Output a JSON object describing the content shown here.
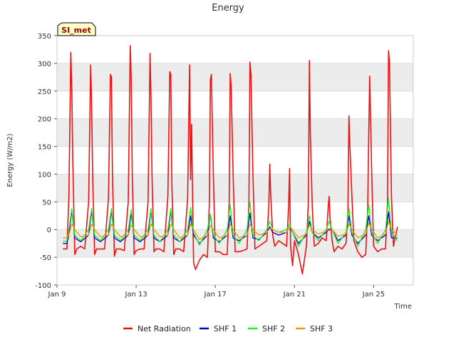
{
  "chart_data": {
    "type": "line",
    "title": "Energy",
    "xlabel": "Time",
    "ylabel": "Energy (W/m2)",
    "badge": "SI_met",
    "ylim": [
      -100,
      350
    ],
    "xlim": [
      0,
      18.0
    ],
    "x_unit": "days since Jan 9 00:00",
    "yticks": [
      -100,
      -50,
      0,
      50,
      100,
      150,
      200,
      250,
      300,
      350
    ],
    "xticks": [
      {
        "value": 0,
        "label": "Jan 9"
      },
      {
        "value": 4,
        "label": "Jan 13"
      },
      {
        "value": 8,
        "label": "Jan 17"
      },
      {
        "value": 12,
        "label": "Jan 21"
      },
      {
        "value": 16,
        "label": "Jan 25"
      }
    ],
    "colors": {
      "net_radiation": "#ee1111",
      "shf1": "#0000cc",
      "shf2": "#22ee22",
      "shf3": "#ee9900",
      "band": "#ececec",
      "grid": "#dddddd",
      "badge_bg": "#ffffcc",
      "badge_text": "#990000"
    },
    "series": [
      {
        "name": "Net Radiation",
        "color": "#ee1111",
        "x": [
          0.3,
          0.5,
          0.6,
          0.7,
          0.75,
          0.8,
          0.9,
          1.0,
          1.2,
          1.4,
          1.6,
          1.7,
          1.75,
          1.8,
          1.9,
          2.0,
          2.2,
          2.4,
          2.6,
          2.7,
          2.75,
          2.8,
          2.9,
          3.0,
          3.2,
          3.4,
          3.6,
          3.7,
          3.75,
          3.8,
          3.9,
          4.0,
          4.2,
          4.4,
          4.6,
          4.7,
          4.75,
          4.8,
          4.9,
          5.0,
          5.2,
          5.4,
          5.6,
          5.7,
          5.75,
          5.8,
          5.9,
          6.0,
          6.2,
          6.4,
          6.6,
          6.7,
          6.75,
          6.8,
          6.85,
          6.9,
          7.0,
          7.2,
          7.4,
          7.6,
          7.7,
          7.75,
          7.8,
          7.9,
          8.0,
          8.2,
          8.4,
          8.6,
          8.7,
          8.75,
          8.8,
          8.9,
          9.0,
          9.2,
          9.4,
          9.6,
          9.7,
          9.75,
          9.8,
          9.9,
          10.0,
          10.2,
          10.4,
          10.6,
          10.7,
          10.75,
          10.8,
          10.9,
          11.0,
          11.2,
          11.4,
          11.6,
          11.7,
          11.75,
          11.8,
          11.9,
          12.0,
          12.2,
          12.4,
          12.6,
          12.7,
          12.75,
          12.8,
          12.9,
          13.0,
          13.2,
          13.4,
          13.6,
          13.7,
          13.75,
          13.8,
          13.9,
          14.0,
          14.2,
          14.4,
          14.6,
          14.7,
          14.75,
          14.8,
          14.9,
          15.0,
          15.2,
          15.4,
          15.6,
          15.7,
          15.75,
          15.8,
          15.9,
          16.0,
          16.2,
          16.4,
          16.6,
          16.7,
          16.75,
          16.8,
          16.9,
          17.0,
          17.2
        ],
        "values": [
          -35,
          -35,
          60,
          320,
          250,
          120,
          -45,
          -35,
          -30,
          -35,
          50,
          297,
          225,
          100,
          -45,
          -35,
          -35,
          -35,
          55,
          280,
          275,
          100,
          -48,
          -35,
          -35,
          -38,
          50,
          332,
          270,
          100,
          -45,
          -38,
          -35,
          -35,
          50,
          318,
          240,
          100,
          -40,
          -35,
          -35,
          -40,
          60,
          285,
          280,
          90,
          -45,
          -35,
          -35,
          -40,
          55,
          297,
          90,
          190,
          60,
          -60,
          -72,
          -55,
          -45,
          -50,
          50,
          270,
          280,
          100,
          -40,
          -40,
          -45,
          -45,
          50,
          282,
          260,
          100,
          -40,
          -40,
          -38,
          -35,
          50,
          302,
          280,
          100,
          -35,
          -30,
          -25,
          -20,
          40,
          118,
          60,
          -10,
          -30,
          -20,
          -25,
          -30,
          40,
          110,
          -30,
          -65,
          -20,
          -45,
          -80,
          -30,
          50,
          305,
          170,
          40,
          -30,
          -25,
          -15,
          -20,
          40,
          60,
          20,
          -20,
          -40,
          -30,
          -35,
          -25,
          30,
          205,
          150,
          60,
          -20,
          -40,
          -50,
          -45,
          40,
          170,
          277,
          100,
          -30,
          -40,
          -35,
          -35,
          50,
          323,
          300,
          60,
          -30,
          5
        ]
      },
      {
        "name": "SHF 1",
        "color": "#0000cc",
        "x": [
          0.3,
          0.5,
          0.6,
          0.75,
          0.9,
          1.2,
          1.6,
          1.75,
          1.9,
          2.2,
          2.6,
          2.75,
          2.9,
          3.2,
          3.6,
          3.75,
          3.9,
          4.2,
          4.6,
          4.75,
          4.9,
          5.2,
          5.6,
          5.75,
          5.9,
          6.2,
          6.6,
          6.75,
          6.9,
          7.2,
          7.6,
          7.75,
          7.9,
          8.2,
          8.6,
          8.75,
          8.9,
          9.2,
          9.6,
          9.75,
          9.9,
          10.2,
          10.6,
          10.75,
          10.9,
          11.2,
          11.6,
          11.75,
          11.9,
          12.2,
          12.6,
          12.75,
          12.9,
          13.2,
          13.6,
          13.75,
          13.9,
          14.2,
          14.6,
          14.75,
          14.9,
          15.2,
          15.6,
          15.75,
          15.9,
          16.2,
          16.6,
          16.75,
          16.9,
          17.2
        ],
        "values": [
          -25,
          -25,
          -10,
          35,
          -15,
          -22,
          -10,
          35,
          -15,
          -22,
          -10,
          35,
          -15,
          -22,
          -10,
          30,
          -15,
          -22,
          -10,
          35,
          -15,
          -22,
          -10,
          35,
          -15,
          -22,
          -10,
          25,
          -10,
          -25,
          -10,
          28,
          -15,
          -22,
          -10,
          25,
          -15,
          -20,
          -10,
          30,
          -15,
          -18,
          -5,
          5,
          -5,
          -10,
          -5,
          5,
          -5,
          -25,
          -10,
          15,
          -5,
          -15,
          -5,
          0,
          0,
          -20,
          -10,
          25,
          -10,
          -25,
          -10,
          25,
          -10,
          -20,
          -10,
          32,
          -15,
          -15
        ]
      },
      {
        "name": "SHF 2",
        "color": "#22ee22",
        "x": [
          0.3,
          0.5,
          0.6,
          0.75,
          0.9,
          1.2,
          1.6,
          1.75,
          1.9,
          2.2,
          2.6,
          2.75,
          2.9,
          3.2,
          3.6,
          3.75,
          3.9,
          4.2,
          4.6,
          4.75,
          4.9,
          5.2,
          5.6,
          5.75,
          5.9,
          6.2,
          6.6,
          6.75,
          6.9,
          7.2,
          7.6,
          7.75,
          7.9,
          8.2,
          8.6,
          8.75,
          8.9,
          9.2,
          9.6,
          9.75,
          9.9,
          10.2,
          10.6,
          10.75,
          10.9,
          11.2,
          11.6,
          11.75,
          11.9,
          12.2,
          12.6,
          12.75,
          12.9,
          13.2,
          13.6,
          13.75,
          13.9,
          14.2,
          14.6,
          14.75,
          14.9,
          15.2,
          15.6,
          15.75,
          15.9,
          16.2,
          16.6,
          16.75,
          16.9,
          17.2
        ],
        "values": [
          -22,
          -20,
          0,
          38,
          -10,
          -20,
          0,
          38,
          -10,
          -20,
          0,
          38,
          -10,
          -20,
          0,
          36,
          -10,
          -20,
          0,
          38,
          -10,
          -22,
          0,
          38,
          -10,
          -22,
          0,
          40,
          -5,
          -28,
          0,
          28,
          -10,
          -25,
          0,
          45,
          -10,
          -25,
          0,
          50,
          -10,
          -20,
          0,
          15,
          0,
          -5,
          0,
          10,
          -5,
          -30,
          -5,
          25,
          -5,
          -20,
          0,
          15,
          0,
          -25,
          -5,
          38,
          -5,
          -30,
          0,
          45,
          -5,
          -25,
          0,
          57,
          -5,
          -20
        ]
      },
      {
        "name": "SHF 3",
        "color": "#ee9900",
        "x": [
          0.3,
          0.5,
          0.6,
          0.75,
          0.9,
          1.2,
          1.6,
          1.75,
          1.9,
          2.2,
          2.6,
          2.75,
          2.9,
          3.2,
          3.6,
          3.75,
          3.9,
          4.2,
          4.6,
          4.75,
          4.9,
          5.2,
          5.6,
          5.75,
          5.9,
          6.2,
          6.6,
          6.75,
          6.9,
          7.2,
          7.6,
          7.75,
          7.9,
          8.2,
          8.6,
          8.75,
          8.9,
          9.2,
          9.6,
          9.75,
          9.9,
          10.2,
          10.6,
          10.75,
          10.9,
          11.2,
          11.6,
          11.75,
          11.9,
          12.2,
          12.6,
          12.75,
          12.9,
          13.2,
          13.6,
          13.75,
          13.9,
          14.2,
          14.6,
          14.75,
          14.9,
          15.2,
          15.6,
          15.75,
          15.9,
          16.2,
          16.6,
          16.75,
          16.9,
          17.2
        ],
        "values": [
          -15,
          -15,
          -10,
          10,
          0,
          -13,
          -10,
          10,
          0,
          -13,
          -10,
          10,
          0,
          -13,
          -10,
          8,
          0,
          -13,
          -10,
          10,
          0,
          -13,
          -10,
          10,
          0,
          -15,
          -10,
          10,
          0,
          -18,
          -10,
          8,
          0,
          -15,
          -10,
          10,
          0,
          -15,
          -10,
          10,
          0,
          -10,
          -5,
          2,
          0,
          -5,
          -5,
          5,
          0,
          -15,
          -8,
          8,
          0,
          -8,
          -3,
          2,
          0,
          -12,
          -8,
          10,
          0,
          -15,
          -8,
          12,
          0,
          -15,
          -8,
          15,
          0,
          -10
        ]
      }
    ],
    "legend": {
      "placement": "bottom-center",
      "entries": [
        "Net Radiation",
        "SHF 1",
        "SHF 2",
        "SHF 3"
      ]
    }
  }
}
